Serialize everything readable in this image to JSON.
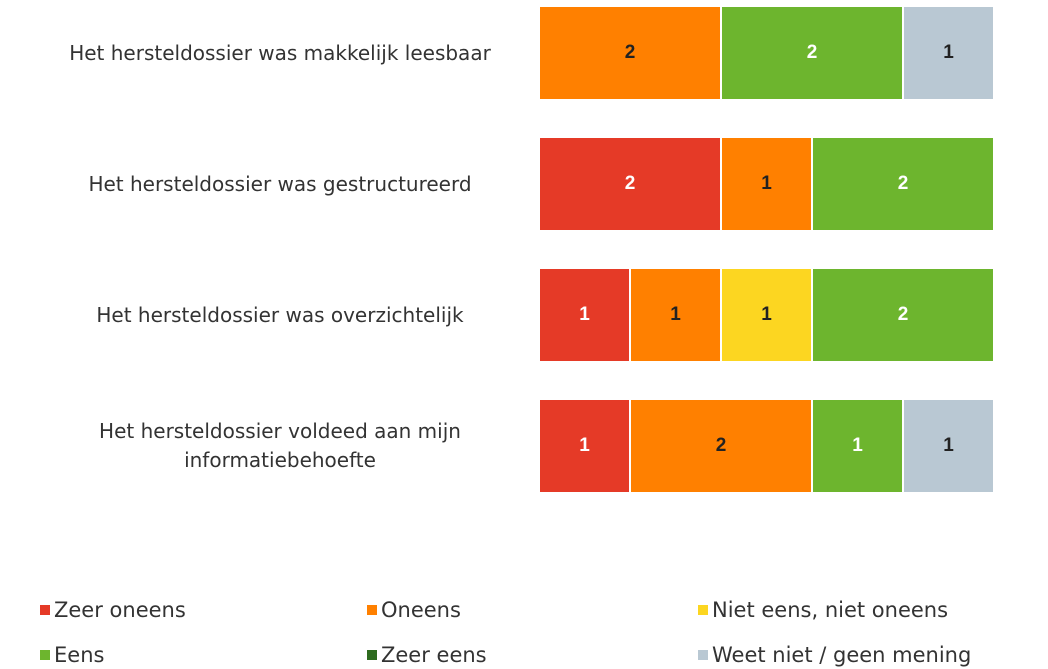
{
  "chart_data": {
    "type": "stacked-bar-horizontal",
    "categories": [
      "Het hersteldossier was makkelijk leesbaar",
      "Het hersteldossier was gestructureerd",
      "Het hersteldossier was overzichtelijk",
      "Het hersteldossier voldeed aan mijn informatiebehoefte"
    ],
    "series": [
      {
        "name": "Zeer oneens",
        "color": "#e53a27",
        "values": [
          0,
          2,
          1,
          1
        ]
      },
      {
        "name": "Oneens",
        "color": "#ff8000",
        "values": [
          2,
          1,
          1,
          2
        ]
      },
      {
        "name": "Niet eens, niet oneens",
        "color": "#fcd621",
        "values": [
          0,
          0,
          1,
          0
        ]
      },
      {
        "name": "Eens",
        "color": "#6db52e",
        "values": [
          2,
          2,
          2,
          1
        ]
      },
      {
        "name": "Zeer eens",
        "color": "#2e6b1f",
        "values": [
          0,
          0,
          0,
          0
        ]
      },
      {
        "name": "Weet niet / geen mening",
        "color": "#b9c8d3",
        "values": [
          1,
          0,
          0,
          1
        ]
      }
    ],
    "legend": "bottom"
  }
}
